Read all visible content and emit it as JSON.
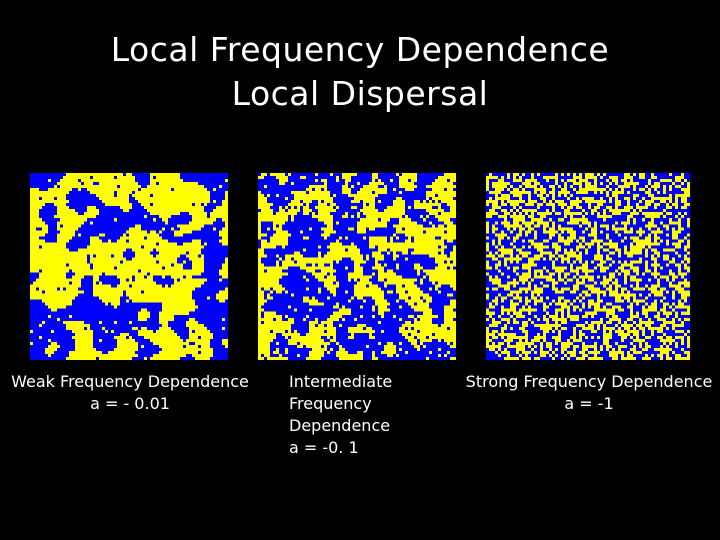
{
  "title": {
    "line1": "Local Frequency Dependence",
    "line2": "Local Dispersal"
  },
  "colors": {
    "background": "#000000",
    "species_a": "#0000ff",
    "species_b": "#ffff00",
    "text": "#ffffff"
  },
  "panels": [
    {
      "caption_lines": [
        "Weak Frequency Dependence",
        "a = - 0.01"
      ],
      "a": -0.01,
      "pattern": "large clusters"
    },
    {
      "caption_lines": [
        "Intermediate",
        "Frequency",
        "Dependence",
        "a = -0. 1"
      ],
      "a": -0.1,
      "pattern": "medium clusters"
    },
    {
      "caption_lines": [
        "Strong Frequency Dependence",
        "a = -1"
      ],
      "a": -1,
      "pattern": "fine-grained mixing"
    }
  ]
}
